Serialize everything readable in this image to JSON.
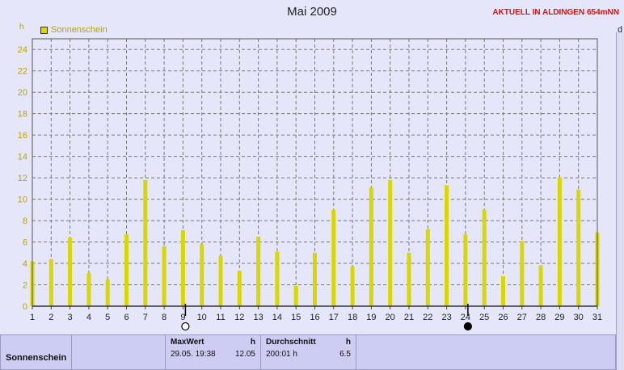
{
  "header": {
    "title": "Mai 2009",
    "station": "AKTUELL IN ALDINGEN 654mNN",
    "unit_left": "h",
    "unit_right": "d"
  },
  "legend": {
    "label": "Sonnenschein",
    "color": "#d8d800"
  },
  "table": {
    "row_label": "Sonnenschein",
    "max_header": "MaxWert",
    "max_unit": "h",
    "max_datetime": "29.05. 19:38",
    "max_value": "12.05",
    "avg_header": "Durchschnitt",
    "avg_unit": "h",
    "avg_total": "200:01 h",
    "avg_value": "6.5"
  },
  "chart_data": {
    "type": "bar",
    "x": [
      1,
      2,
      3,
      4,
      5,
      6,
      7,
      8,
      9,
      10,
      11,
      12,
      13,
      14,
      15,
      16,
      17,
      18,
      19,
      20,
      21,
      22,
      23,
      24,
      25,
      26,
      27,
      28,
      29,
      30,
      31
    ],
    "categories": [
      "1",
      "2",
      "3",
      "4",
      "5",
      "6",
      "7",
      "8",
      "9",
      "10",
      "11",
      "12",
      "13",
      "14",
      "15",
      "16",
      "17",
      "18",
      "19",
      "20",
      "21",
      "22",
      "23",
      "24",
      "25",
      "26",
      "27",
      "28",
      "29",
      "30",
      "31"
    ],
    "series": [
      {
        "name": "Sonnenschein",
        "color": "#d8d800",
        "values": [
          4.2,
          4.4,
          6.4,
          3.1,
          2.5,
          6.7,
          11.8,
          5.6,
          7.1,
          5.8,
          4.7,
          3.3,
          6.5,
          5.1,
          1.9,
          5.0,
          9.0,
          3.7,
          11.1,
          11.8,
          5.0,
          7.2,
          11.3,
          6.7,
          9.0,
          2.8,
          6.1,
          3.8,
          12.05,
          10.9,
          6.9
        ]
      }
    ],
    "ylim": [
      0,
      25
    ],
    "yticks": [
      0,
      2,
      4,
      6,
      8,
      10,
      12,
      14,
      16,
      18,
      20,
      22,
      24
    ],
    "grid": true,
    "legend_position": "top-left",
    "moon_phases": [
      {
        "day": 9,
        "phase": "full-moon"
      },
      {
        "day": 24,
        "phase": "new-moon"
      }
    ]
  }
}
